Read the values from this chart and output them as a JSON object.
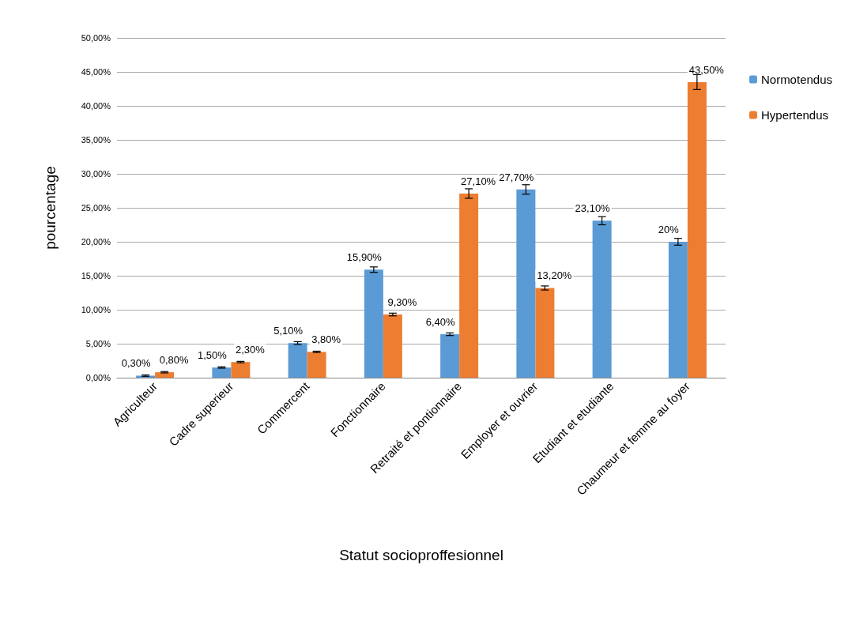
{
  "chart_data": {
    "type": "bar",
    "xlabel": "Statut socioproffesionnel",
    "ylabel": "pourcentage",
    "categories": [
      "Agriculteur",
      "Cadre superieur",
      "Commercent",
      "Fonctionnaire",
      "Retraité et pontionnaire",
      "Employer et ouvrier",
      "Etudiant et etudiante",
      "Chaumeur et femme au foyer"
    ],
    "series": [
      {
        "name": "Normotendus",
        "color": "#5b9bd5",
        "values": [
          0.3,
          1.5,
          5.1,
          15.9,
          6.4,
          27.7,
          23.1,
          20
        ],
        "errors": [
          0.1,
          0.1,
          0.2,
          0.4,
          0.2,
          0.7,
          0.6,
          0.5
        ],
        "value_labels": [
          "0,30%",
          "1,50%",
          "5,10%",
          "15,90%",
          "6,40%",
          "27,70%",
          "23,10%",
          "20%"
        ]
      },
      {
        "name": "Hypertendus",
        "color": "#ed7d31",
        "values": [
          0.8,
          2.3,
          3.8,
          9.3,
          27.1,
          13.2,
          null,
          43.5
        ],
        "errors": [
          0.1,
          0.1,
          0.1,
          0.2,
          0.7,
          0.3,
          null,
          1.1
        ],
        "value_labels": [
          "0,80%",
          "2,30%",
          "3,80%",
          "9,30%",
          "27,10%",
          "13,20%",
          null,
          "43,50%"
        ]
      }
    ],
    "ylim": [
      0,
      50
    ],
    "yticks": [
      {
        "value": 0,
        "label": "0,00%"
      },
      {
        "value": 5,
        "label": "5,00%"
      },
      {
        "value": 10,
        "label": "10,00%"
      },
      {
        "value": 15,
        "label": "15,00%"
      },
      {
        "value": 20,
        "label": "20,00%"
      },
      {
        "value": 25,
        "label": "25,00%"
      },
      {
        "value": 30,
        "label": "30,00%"
      },
      {
        "value": 35,
        "label": "35,00%"
      },
      {
        "value": 40,
        "label": "40,00%"
      },
      {
        "value": 45,
        "label": "45,00%"
      },
      {
        "value": 50,
        "label": "50,00%"
      }
    ],
    "grid": "y",
    "legend": "right"
  }
}
